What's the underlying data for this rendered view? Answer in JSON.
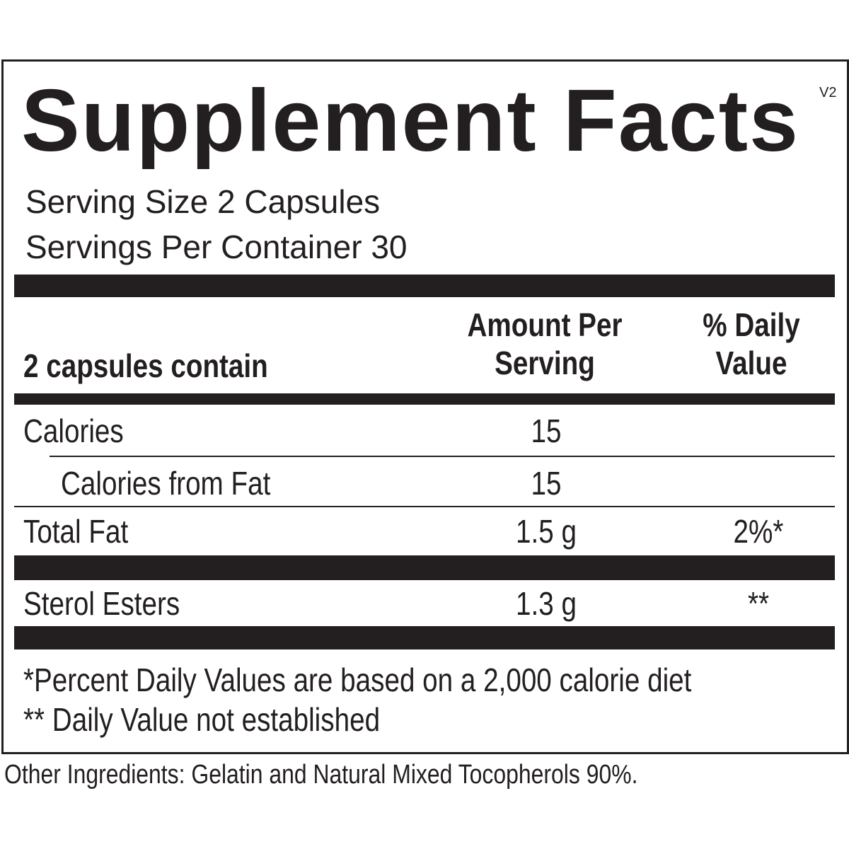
{
  "version": "V2",
  "title": "Supplement Facts",
  "serving": {
    "size": "Serving Size 2 Capsules",
    "per_container": "Servings Per Container 30"
  },
  "header": {
    "contain": "2 capsules contain",
    "amount": [
      "Amount Per",
      "Serving"
    ],
    "daily_value": [
      "% Daily",
      "Value"
    ]
  },
  "rows": [
    {
      "name": "Calories",
      "amount": "15"
    },
    {
      "name": "Calories from Fat",
      "amount": "15"
    },
    {
      "name": "Total Fat",
      "amount": "1.5 g",
      "dv": "2%*"
    },
    {
      "name": "Sterol Esters",
      "amount": "1.3 g",
      "dv": "**"
    }
  ],
  "footnotes": [
    "*Percent Daily Values are based on a 2,000 calorie diet",
    "** Daily Value not established"
  ],
  "other_ingredients": "Other Ingredients: Gelatin and Natural Mixed Tocopherols 90%."
}
